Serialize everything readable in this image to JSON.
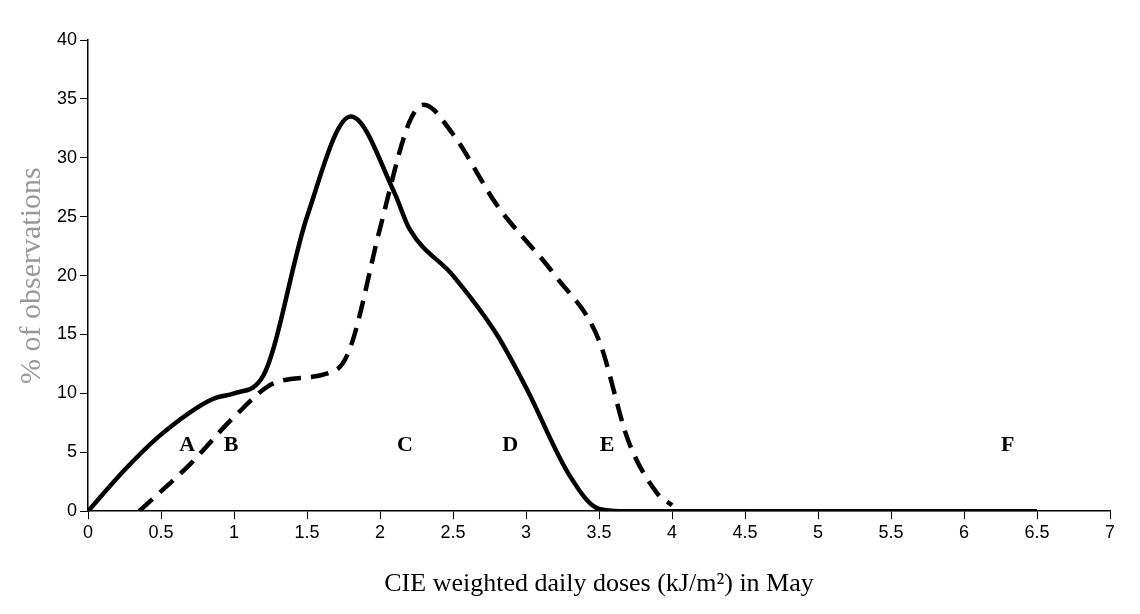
{
  "chart_data": {
    "type": "line",
    "xlabel": "CIE weighted daily doses (kJ/m²) in May",
    "ylabel": "% of observations",
    "xlim": [
      0,
      7
    ],
    "xticks": [
      0,
      0.5,
      1,
      1.5,
      2,
      2.5,
      3,
      3.5,
      4,
      4.5,
      5,
      5.5,
      6,
      6.5,
      7
    ],
    "ylim": [
      0,
      40
    ],
    "yticks": [
      0,
      5,
      10,
      15,
      20,
      25,
      30,
      35,
      40
    ],
    "grid": false,
    "legend": false,
    "marker": "none",
    "series": [
      {
        "color": "#000000",
        "line_style": "solid",
        "x": [
          0,
          0.25,
          0.5,
          0.85,
          1.0,
          1.2,
          1.5,
          1.8,
          2.1,
          2.2,
          2.5,
          2.8,
          3.0,
          3.3,
          3.5,
          3.7,
          4.0,
          5.0,
          6.0,
          6.5
        ],
        "values": [
          0,
          3.5,
          6.5,
          9.5,
          10,
          11.5,
          25,
          33.5,
          27,
          24,
          20,
          15,
          10.5,
          3,
          0.2,
          0,
          0,
          0,
          0,
          0
        ]
      },
      {
        "color": "#000000",
        "line_style": "dashed",
        "x": [
          0.35,
          0.7,
          1.0,
          1.3,
          1.7,
          1.8,
          2.0,
          2.2,
          2.3,
          2.5,
          2.8,
          3.2,
          3.5,
          3.7,
          3.9,
          4.0
        ],
        "values": [
          0,
          4,
          8,
          11,
          12,
          14,
          24,
          33,
          34.5,
          32,
          26,
          20,
          14.5,
          6,
          1.5,
          0.5
        ]
      }
    ],
    "annotations": [
      "A",
      "B",
      "C",
      "D",
      "E",
      "F"
    ]
  }
}
